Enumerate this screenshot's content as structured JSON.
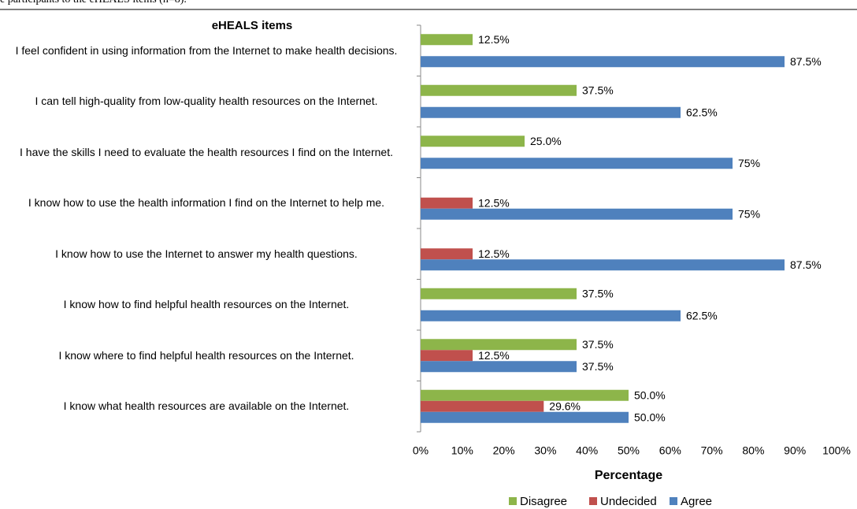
{
  "caption": "e participants to the eHEALS items (n=8).",
  "chart_data": {
    "type": "hbar",
    "y_label": "eHEALS items",
    "x_label": "Percentage",
    "categories": [
      "I feel confident in using information from the Internet to make health decisions.",
      "I can tell high-quality from low-quality health resources on the Internet.",
      "I have the skills I need to evaluate the health resources I find on the Internet.",
      "I know how to use the health information I find on the Internet to help me.",
      "I know how to use the Internet to answer my health questions.",
      "I know how to find helpful health resources on the Internet.",
      "I know where to find helpful health resources on the Internet.",
      "I know what health resources are available on the Internet."
    ],
    "series": [
      {
        "name": "Disagree",
        "color": "#8db54a",
        "values": [
          12.5,
          37.5,
          25.0,
          null,
          null,
          37.5,
          37.5,
          50.0
        ],
        "value_labels": [
          "12.5%",
          "37.5%",
          "25.0%",
          null,
          null,
          "37.5%",
          "37.5%",
          "50.0%"
        ]
      },
      {
        "name": "Undecided",
        "color": "#c0504d",
        "values": [
          null,
          null,
          null,
          12.5,
          12.5,
          null,
          12.5,
          29.6
        ],
        "value_labels": [
          null,
          null,
          null,
          "12.5%",
          "12.5%",
          null,
          "12.5%",
          "29.6%"
        ]
      },
      {
        "name": "Agree",
        "color": "#4f81bd",
        "values": [
          87.5,
          62.5,
          75,
          75,
          87.5,
          62.5,
          37.5,
          50.0
        ],
        "value_labels": [
          "87.5%",
          "62.5%",
          "75%",
          "75%",
          "87.5%",
          "62.5%",
          "37.5%",
          "50.0%"
        ]
      }
    ],
    "xlim": [
      0,
      100
    ],
    "xticks": [
      {
        "value": 0,
        "label": "0%"
      },
      {
        "value": 10,
        "label": "10%"
      },
      {
        "value": 20,
        "label": "20%"
      },
      {
        "value": 30,
        "label": "30%"
      },
      {
        "value": 40,
        "label": "40%"
      },
      {
        "value": 50,
        "label": "50%"
      },
      {
        "value": 60,
        "label": "60%"
      },
      {
        "value": 70,
        "label": "70%"
      },
      {
        "value": 80,
        "label": "80%"
      },
      {
        "value": 90,
        "label": "90%"
      },
      {
        "value": 100,
        "label": "100%"
      }
    ],
    "legend": "bottom"
  }
}
